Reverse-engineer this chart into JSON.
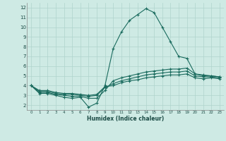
{
  "xlabel": "Humidex (Indice chaleur)",
  "ylabel": "",
  "background_color": "#ceeae4",
  "grid_color": "#afd4cc",
  "line_color": "#1a6b5e",
  "xlim": [
    -0.5,
    23.5
  ],
  "ylim": [
    1.5,
    12.5
  ],
  "xticks": [
    0,
    1,
    2,
    3,
    4,
    5,
    6,
    7,
    8,
    9,
    10,
    11,
    12,
    13,
    14,
    15,
    16,
    17,
    18,
    19,
    20,
    21,
    22,
    23
  ],
  "yticks": [
    2,
    3,
    4,
    5,
    6,
    7,
    8,
    9,
    10,
    11,
    12
  ],
  "series": [
    [
      4.0,
      3.2,
      3.2,
      3.0,
      2.8,
      2.7,
      2.8,
      1.8,
      2.2,
      4.0,
      7.8,
      9.5,
      10.7,
      11.3,
      11.9,
      11.5,
      10.0,
      8.5,
      7.0,
      6.8,
      5.2,
      5.0,
      5.0,
      4.9
    ],
    [
      4.0,
      3.3,
      3.3,
      3.1,
      3.0,
      2.9,
      2.9,
      2.7,
      2.7,
      3.5,
      4.5,
      4.8,
      5.0,
      5.2,
      5.4,
      5.5,
      5.6,
      5.7,
      5.7,
      5.8,
      5.2,
      5.1,
      5.0,
      4.9
    ],
    [
      4.0,
      3.4,
      3.4,
      3.2,
      3.1,
      3.1,
      3.0,
      2.9,
      3.0,
      3.8,
      4.2,
      4.5,
      4.7,
      4.9,
      5.1,
      5.2,
      5.3,
      5.4,
      5.4,
      5.5,
      5.0,
      4.9,
      4.9,
      4.8
    ],
    [
      4.0,
      3.5,
      3.5,
      3.3,
      3.2,
      3.2,
      3.1,
      3.0,
      3.1,
      3.9,
      4.0,
      4.3,
      4.5,
      4.6,
      4.8,
      4.9,
      5.0,
      5.1,
      5.1,
      5.2,
      4.8,
      4.7,
      4.8,
      4.7
    ]
  ],
  "figsize": [
    3.2,
    2.0
  ],
  "dpi": 100
}
